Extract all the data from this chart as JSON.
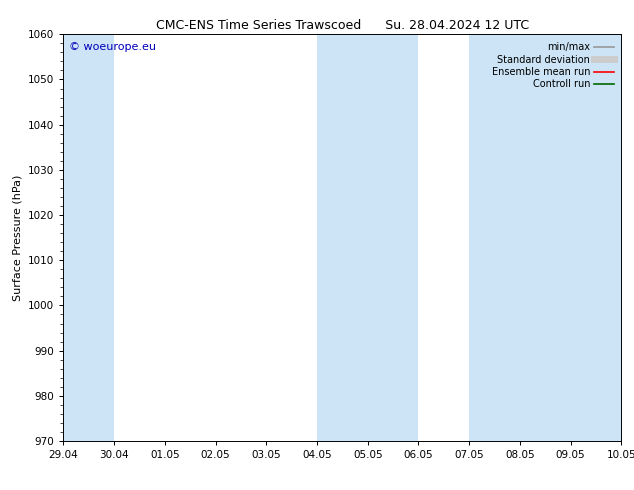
{
  "title_left": "CMC-ENS Time Series Trawscoed",
  "title_right": "Su. 28.04.2024 12 UTC",
  "ylabel": "Surface Pressure (hPa)",
  "ylim": [
    970,
    1060
  ],
  "yticks": [
    970,
    980,
    990,
    1000,
    1010,
    1020,
    1030,
    1040,
    1050,
    1060
  ],
  "x_tick_labels": [
    "29.04",
    "30.04",
    "01.05",
    "02.05",
    "03.05",
    "04.05",
    "05.05",
    "06.05",
    "07.05",
    "08.05",
    "09.05",
    "10.05"
  ],
  "band_color": "#cce4f5",
  "background_color": "#ffffff",
  "watermark": "© woeurope.eu",
  "watermark_color": "#0000bb",
  "legend_entries": [
    {
      "label": "min/max",
      "color": "#999999",
      "lw": 1.2
    },
    {
      "label": "Standard deviation",
      "color": "#cccccc",
      "lw": 5
    },
    {
      "label": "Ensemble mean run",
      "color": "#ff0000",
      "lw": 1.2
    },
    {
      "label": "Controll run",
      "color": "#006600",
      "lw": 1.2
    }
  ],
  "title_fontsize": 9,
  "tick_fontsize": 7.5,
  "ylabel_fontsize": 8,
  "watermark_fontsize": 8,
  "legend_fontsize": 7
}
